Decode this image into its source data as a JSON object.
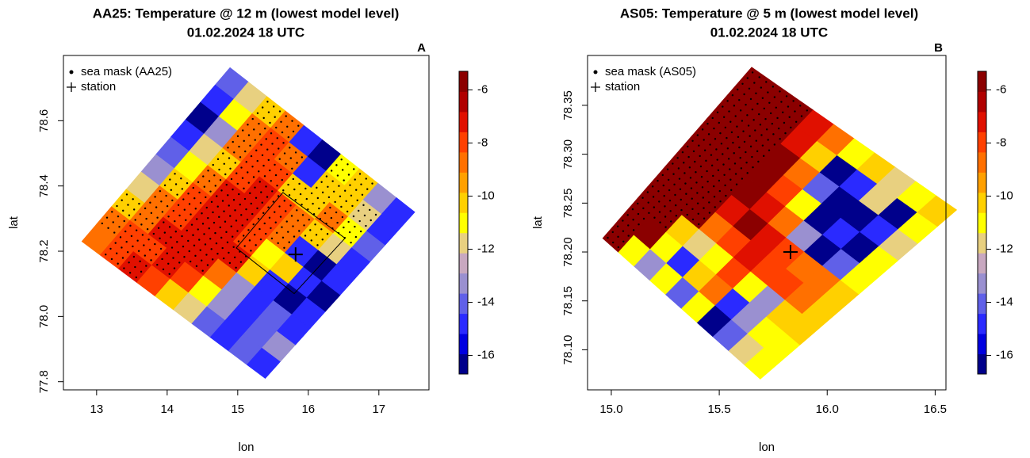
{
  "chart_data": [
    {
      "type": "heatmap",
      "title": "AA25: Temperature @ 12 m (lowest model level)",
      "subtitle": "01.02.2024 18 UTC",
      "panel": "A",
      "x_label": "lon",
      "y_label": "lat",
      "xlim": [
        12.53,
        17.71
      ],
      "ylim": [
        77.775,
        78.8
      ],
      "xticks": [
        13,
        14,
        15,
        16,
        17
      ],
      "yticks": [
        77.8,
        {
          "value": 78,
          "label": "78.0"
        },
        78.2,
        78.4,
        78.6
      ],
      "domain": {
        "lon": [
          14.89,
          17.51,
          15.39,
          12.79
        ],
        "lat": [
          78.763,
          78.32,
          77.81,
          78.23
        ]
      },
      "values": [
        [
          -14,
          -12,
          -10,
          -9,
          -15,
          -16,
          -11,
          -10,
          -13,
          -15
        ],
        [
          -15,
          -11,
          -9,
          -8,
          -9,
          -15,
          -10,
          -10,
          -12,
          -15
        ],
        [
          -16,
          -13,
          -9,
          -8,
          -8,
          -10,
          -10,
          -9,
          -11,
          -14
        ],
        [
          -15,
          -12,
          -10,
          -8,
          -7,
          -8,
          -9,
          -10,
          -12,
          -15
        ],
        [
          -14,
          -11,
          -9,
          -7,
          -7,
          -8,
          -9,
          -15,
          -16,
          -15
        ],
        [
          -13,
          -10,
          -8,
          -7,
          -7,
          -8,
          -11,
          -10,
          -15,
          -16
        ],
        [
          -12,
          -9,
          -8,
          -7,
          -7,
          -7,
          -10,
          -15,
          -16,
          -15
        ],
        [
          -10,
          -9,
          -7,
          -7,
          -7,
          -9,
          -13,
          -15,
          -14,
          -15
        ],
        [
          -9,
          -8,
          -8,
          -7,
          -8,
          -11,
          -13,
          -15,
          -14,
          -13
        ],
        [
          -9,
          -8,
          -7,
          -8,
          -10,
          -12,
          -14,
          -15,
          -14,
          -15
        ]
      ],
      "sea_mask": [
        [
          0,
          0,
          1,
          1,
          0,
          0,
          1,
          1,
          0,
          0
        ],
        [
          0,
          0,
          1,
          1,
          1,
          0,
          1,
          1,
          1,
          0
        ],
        [
          0,
          0,
          1,
          1,
          1,
          1,
          1,
          1,
          1,
          0
        ],
        [
          0,
          0,
          1,
          1,
          1,
          1,
          1,
          1,
          0,
          0
        ],
        [
          0,
          0,
          1,
          1,
          1,
          1,
          1,
          0,
          0,
          0
        ],
        [
          0,
          1,
          1,
          1,
          1,
          1,
          0,
          0,
          0,
          0
        ],
        [
          0,
          1,
          1,
          1,
          1,
          1,
          0,
          0,
          0,
          0
        ],
        [
          1,
          1,
          1,
          1,
          1,
          0,
          0,
          0,
          0,
          0
        ],
        [
          1,
          1,
          1,
          1,
          0,
          0,
          0,
          0,
          0,
          0
        ],
        [
          0,
          1,
          1,
          0,
          0,
          0,
          0,
          0,
          0,
          0
        ]
      ],
      "inner_domain": {
        "lon": [
          15.64,
          16.52,
          15.8,
          14.98
        ],
        "lat": [
          78.38,
          78.24,
          78.07,
          78.21
        ]
      },
      "station": {
        "lon": 15.82,
        "lat": 78.19
      },
      "legend": [
        {
          "label": "sea mask (AA25)",
          "symbol": "dot"
        },
        {
          "label": "station",
          "symbol": "plus"
        }
      ],
      "zlim": [
        -16.7,
        -5.3
      ],
      "zticks": [
        -16,
        -14,
        -12,
        -10,
        -8,
        -6
      ],
      "colors": [
        "#00008b",
        "#0000e0",
        "#2a2aff",
        "#6060e8",
        "#9a90d0",
        "#c8a8c0",
        "#e8d080",
        "#ffff00",
        "#ffd000",
        "#ffa000",
        "#ff7000",
        "#ff4000",
        "#e01000",
        "#b00000",
        "#8b0000"
      ]
    },
    {
      "type": "heatmap",
      "title": "AS05: Temperature @ 5 m (lowest model level)",
      "subtitle": "01.02.2024 18 UTC",
      "panel": "B",
      "x_label": "lon",
      "y_label": "lat",
      "xlim": [
        14.89,
        16.55
      ],
      "ylim": [
        78.059,
        78.401
      ],
      "xticks": [
        {
          "value": 15,
          "label": "15.0"
        },
        15.5,
        {
          "value": 16,
          "label": "16.0"
        },
        16.5
      ],
      "yticks": [
        {
          "value": 78.1,
          "label": "78.10"
        },
        78.15,
        {
          "value": 78.2,
          "label": "78.20"
        },
        78.25,
        {
          "value": 78.3,
          "label": "78.30"
        },
        78.35
      ],
      "domain": {
        "lon": [
          15.65,
          16.6,
          15.69,
          14.96
        ],
        "lat": [
          78.389,
          78.243,
          78.07,
          78.214
        ]
      },
      "values": [
        [
          -5.5,
          -5.5,
          -5.5,
          -7,
          -9,
          -11,
          -10,
          -12,
          -11,
          -10
        ],
        [
          -5.5,
          -5.5,
          -5.5,
          -7,
          -10,
          -16,
          -15,
          -12,
          -16,
          -11
        ],
        [
          -5.5,
          -5.5,
          -5.5,
          -6,
          -9,
          -14,
          -16,
          -16,
          -15,
          -12
        ],
        [
          -5.5,
          -5.5,
          -5.5,
          -6,
          -8,
          -11,
          -16,
          -15,
          -16,
          -11
        ],
        [
          -5.5,
          -5.5,
          -5.5,
          -6,
          -7,
          -9,
          -13,
          -16,
          -14,
          -11
        ],
        [
          -5.5,
          -5.5,
          -5.5,
          -7,
          -6,
          -7,
          -8,
          -9,
          -9,
          -10
        ],
        [
          -5.5,
          -5.5,
          -5.5,
          -9,
          -8,
          -7,
          -8,
          -8,
          -9,
          -10
        ],
        [
          -5.5,
          -5.5,
          -10,
          -12,
          -11,
          -8,
          -11,
          -13,
          -10,
          -10
        ],
        [
          -5.5,
          -6,
          -11,
          -15,
          -10,
          -9,
          -15,
          -13,
          -11,
          -11
        ],
        [
          -5.5,
          -11,
          -13,
          -11,
          -14,
          -11,
          -16,
          -14,
          -12,
          -11
        ]
      ],
      "sea_mask": [
        [
          1,
          1,
          1,
          0,
          0,
          0,
          0,
          0,
          0,
          0
        ],
        [
          1,
          1,
          1,
          0,
          0,
          0,
          0,
          0,
          0,
          0
        ],
        [
          1,
          1,
          1,
          0,
          0,
          0,
          0,
          0,
          0,
          0
        ],
        [
          1,
          1,
          1,
          0,
          0,
          0,
          0,
          0,
          0,
          0
        ],
        [
          1,
          1,
          1,
          0,
          0,
          0,
          0,
          0,
          0,
          0
        ],
        [
          1,
          1,
          1,
          0,
          0,
          0,
          0,
          0,
          0,
          0
        ],
        [
          1,
          1,
          1,
          0,
          0,
          0,
          0,
          0,
          0,
          0
        ],
        [
          1,
          1,
          0,
          0,
          0,
          0,
          0,
          0,
          0,
          0
        ],
        [
          1,
          0,
          0,
          0,
          0,
          0,
          0,
          0,
          0,
          0
        ],
        [
          1,
          0,
          0,
          0,
          0,
          0,
          0,
          0,
          0,
          0
        ]
      ],
      "station": {
        "lon": 15.83,
        "lat": 78.2
      },
      "legend": [
        {
          "label": "sea mask (AS05)",
          "symbol": "dot"
        },
        {
          "label": "station",
          "symbol": "plus"
        }
      ],
      "zlim": [
        -16.7,
        -5.3
      ],
      "zticks": [
        -16,
        -14,
        -12,
        -10,
        -8,
        -6
      ],
      "colors": [
        "#00008b",
        "#0000e0",
        "#2a2aff",
        "#6060e8",
        "#9a90d0",
        "#c8a8c0",
        "#e8d080",
        "#ffff00",
        "#ffd000",
        "#ffa000",
        "#ff7000",
        "#ff4000",
        "#e01000",
        "#b00000",
        "#8b0000"
      ]
    }
  ]
}
